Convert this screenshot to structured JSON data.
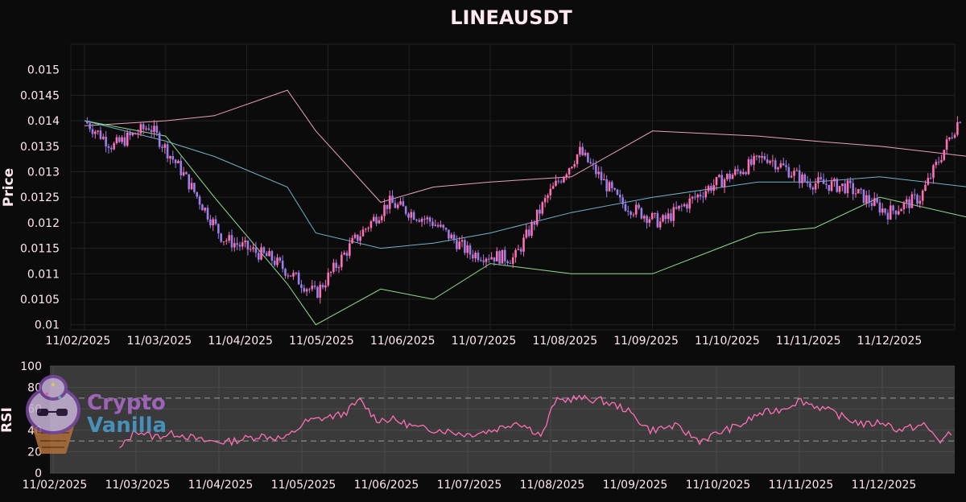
{
  "chart_data": [
    {
      "type": "candlestick",
      "title": "LINEAUSDT",
      "ylabel": "Price",
      "ylim": [
        0.0099,
        0.0155
      ],
      "y_ticks": [
        0.01,
        0.0105,
        0.011,
        0.0115,
        0.012,
        0.0125,
        0.013,
        0.0135,
        0.014,
        0.0145,
        0.015
      ],
      "y_tick_labels": [
        "0.01",
        "0.0105",
        "0.011",
        "0.0115",
        "0.012",
        "0.0125",
        "0.013",
        "0.0135",
        "0.014",
        "0.0145",
        "0.015"
      ],
      "x_ticks": [
        "11/02/2025",
        "11/03/2025",
        "11/04/2025",
        "11/05/2025",
        "11/06/2025",
        "11/07/2025",
        "11/08/2025",
        "11/09/2025",
        "11/10/2025",
        "11/11/2025",
        "11/12/2025"
      ],
      "grid": true,
      "colors": {
        "up": "#ff6fb5",
        "down": "#9b7ee8",
        "upper_band": "#e8a3b8",
        "middle_band": "#6fb4c8",
        "lower_band": "#8fe08f"
      },
      "x": [
        0,
        1.02,
        2.05,
        2.9,
        4.1,
        5.06,
        6.02,
        6.95,
        8.05,
        9.0,
        10.0,
        10.6
      ],
      "candles_close": [
        0.014,
        0.0135,
        0.0139,
        0.013,
        0.0117,
        0.0113,
        0.0106,
        0.0116,
        0.0124,
        0.012,
        0.0114,
        0.0113,
        0.0125,
        0.0134,
        0.0124,
        0.012,
        0.0127,
        0.0133,
        0.0128,
        0.0127,
        0.0122,
        0.0125,
        0.0141
      ],
      "candles_x": [
        0,
        0.35,
        0.8,
        1.2,
        1.7,
        2.3,
        2.85,
        3.3,
        3.75,
        4.3,
        4.75,
        5.3,
        5.7,
        6.1,
        6.6,
        7.1,
        7.7,
        8.4,
        8.9,
        9.4,
        9.9,
        10.3,
        10.8
      ],
      "upper_band": [
        0.0139,
        0.014,
        0.0141,
        0.0146,
        0.0138,
        0.0124,
        0.0127,
        0.0128,
        0.0129,
        0.0138,
        0.0137,
        0.0136,
        0.0135,
        0.0133
      ],
      "middle_band": [
        0.014,
        0.0136,
        0.0133,
        0.0127,
        0.0118,
        0.0115,
        0.0116,
        0.0118,
        0.0122,
        0.0125,
        0.0128,
        0.0128,
        0.0129,
        0.0127
      ],
      "lower_band": [
        0.014,
        0.0137,
        0.0125,
        0.0108,
        0.01,
        0.0107,
        0.0105,
        0.0112,
        0.011,
        0.011,
        0.0118,
        0.0119,
        0.0125,
        0.0121
      ],
      "band_x": [
        0,
        1.0,
        1.6,
        2.5,
        2.85,
        3.65,
        4.3,
        5.0,
        6.0,
        7.0,
        8.3,
        9.0,
        9.8,
        10.9
      ]
    },
    {
      "type": "line",
      "ylabel": "RSI",
      "ylim": [
        0,
        100
      ],
      "y_ticks": [
        0,
        20,
        40,
        60,
        80,
        100
      ],
      "y_tick_labels": [
        "0",
        "20",
        "40",
        "60",
        "80",
        "100"
      ],
      "x_ticks": [
        "11/02/2025",
        "11/03/2025",
        "11/04/2025",
        "11/05/2025",
        "11/06/2025",
        "11/07/2025",
        "11/08/2025",
        "11/09/2025",
        "11/10/2025",
        "11/11/2025",
        "11/12/2025"
      ],
      "reference_lines": [
        70,
        30
      ],
      "grid": true,
      "series": [
        {
          "x": [
            0.8,
            1.0,
            1.2,
            1.5,
            1.8,
            2.1,
            2.5,
            2.8,
            3.05,
            3.3,
            3.5,
            3.7,
            3.9,
            4.1,
            4.4,
            4.7,
            5.0,
            5.3,
            5.6,
            5.9,
            6.05,
            6.3,
            6.6,
            6.9,
            7.2,
            7.5,
            7.8,
            8.1,
            8.3,
            8.5,
            8.8,
            9.0,
            9.3,
            9.6,
            9.8,
            10.0,
            10.2,
            10.5,
            10.7,
            10.85
          ],
          "values": [
            22,
            40,
            34,
            37,
            30,
            29,
            35,
            32,
            48,
            52,
            55,
            68,
            50,
            50,
            42,
            40,
            36,
            40,
            48,
            35,
            67,
            70,
            68,
            60,
            40,
            44,
            30,
            40,
            45,
            55,
            60,
            68,
            60,
            50,
            45,
            48,
            40,
            45,
            30,
            38
          ]
        }
      ]
    }
  ],
  "watermark": {
    "line1": "Crypto",
    "line2": "Vanilla"
  }
}
